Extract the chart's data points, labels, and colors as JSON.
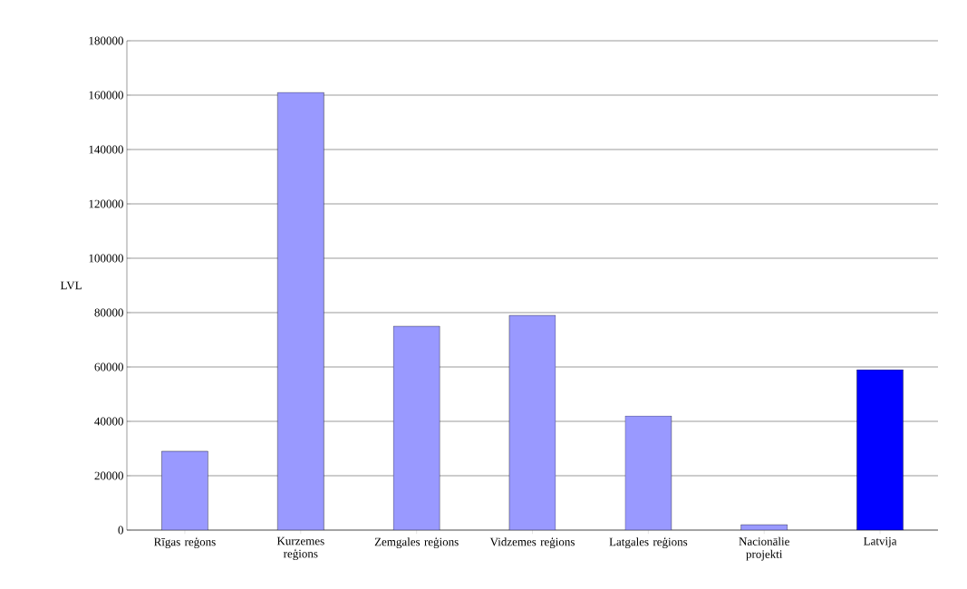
{
  "chart_data": {
    "type": "bar",
    "ylabel": "LVL",
    "categories": [
      "Rīgas reģons",
      "Kurzemes reģions",
      "Zemgales reģions",
      "Vidzemes reģions",
      "Latgales reģions",
      "Nacionālie projekti",
      "Latvija"
    ],
    "values": [
      29000,
      161000,
      75000,
      79000,
      42000,
      2000,
      59000
    ],
    "colors": [
      "#9999ff",
      "#9999ff",
      "#9999ff",
      "#9999ff",
      "#9999ff",
      "#9999ff",
      "#0000ff"
    ],
    "ylim": [
      0,
      180000
    ],
    "yticks": [
      0,
      20000,
      40000,
      60000,
      80000,
      100000,
      120000,
      140000,
      160000,
      180000
    ],
    "grid": "y"
  }
}
